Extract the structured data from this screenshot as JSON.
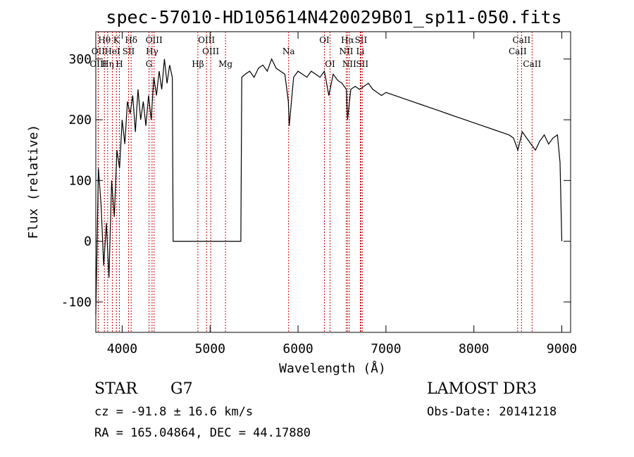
{
  "chart_data": {
    "type": "line",
    "title": "spec-57010-HD105614N420029B01_sp11-050.fits",
    "xlabel": "Wavelength (Å)",
    "ylabel": "Flux (relative)",
    "xlim": [
      3700,
      9100
    ],
    "ylim": [
      -150,
      345
    ],
    "xticks": [
      4000,
      5000,
      6000,
      7000,
      8000,
      9000
    ],
    "yticks": [
      -100,
      0,
      100,
      200,
      300
    ],
    "grid": false,
    "line_color": "#000000",
    "marker_color": "#cc0000",
    "series": [
      {
        "x": [
          3700,
          3730,
          3760,
          3790,
          3820,
          3850,
          3880,
          3910,
          3940,
          3970,
          4000,
          4030,
          4060,
          4090,
          4120,
          4150,
          4180,
          4210,
          4240,
          4270,
          4300,
          4330,
          4360,
          4390,
          4420,
          4450,
          4480,
          4510,
          4540,
          4570,
          4580,
          4620,
          4700,
          4800,
          4900,
          5000,
          5100,
          5200,
          5300,
          5350,
          5360,
          5400,
          5450,
          5500,
          5550,
          5600,
          5650,
          5700,
          5750,
          5800,
          5850,
          5890,
          5900,
          5950,
          6000,
          6050,
          6100,
          6150,
          6200,
          6250,
          6300,
          6350,
          6400,
          6450,
          6500,
          6550,
          6563,
          6600,
          6650,
          6700,
          6750,
          6800,
          6850,
          6900,
          6950,
          7000,
          7100,
          7200,
          7300,
          7400,
          7500,
          7600,
          7700,
          7800,
          7900,
          8000,
          8100,
          8200,
          8300,
          8400,
          8450,
          8500,
          8550,
          8600,
          8650,
          8700,
          8750,
          8800,
          8850,
          8900,
          8950,
          8980,
          9000
        ],
        "y": [
          -120,
          120,
          60,
          -40,
          30,
          -60,
          100,
          40,
          150,
          120,
          200,
          160,
          230,
          210,
          240,
          180,
          250,
          200,
          230,
          190,
          240,
          200,
          270,
          240,
          280,
          250,
          300,
          260,
          290,
          270,
          0,
          0,
          0,
          0,
          0,
          0,
          0,
          0,
          0,
          0,
          270,
          275,
          280,
          270,
          285,
          290,
          280,
          300,
          285,
          280,
          275,
          230,
          190,
          270,
          280,
          275,
          270,
          280,
          275,
          270,
          280,
          240,
          275,
          265,
          260,
          250,
          200,
          250,
          255,
          250,
          255,
          260,
          250,
          245,
          240,
          245,
          240,
          235,
          230,
          225,
          220,
          215,
          210,
          205,
          200,
          195,
          190,
          185,
          180,
          175,
          170,
          150,
          180,
          170,
          160,
          150,
          165,
          175,
          160,
          170,
          175,
          130,
          0
        ]
      }
    ],
    "spectral_lines": [
      {
        "label": "Hθ",
        "x": 3798,
        "row": 1
      },
      {
        "label": "K",
        "x": 3934,
        "row": 1
      },
      {
        "label": "Hδ",
        "x": 4102,
        "row": 1
      },
      {
        "label": "OIII",
        "x": 4363,
        "row": 1
      },
      {
        "label": "OIII",
        "x": 4959,
        "row": 1
      },
      {
        "label": "Na",
        "x": 5893,
        "row": 2
      },
      {
        "label": "OI",
        "x": 6300,
        "row": 1
      },
      {
        "label": "Hα",
        "x": 6563,
        "row": 1
      },
      {
        "label": "SII",
        "x": 6716,
        "row": 1
      },
      {
        "label": "CaII",
        "x": 8542,
        "row": 1
      },
      {
        "label": "OII",
        "x": 3727,
        "row": 2
      },
      {
        "label": "HeI",
        "x": 3889,
        "row": 2
      },
      {
        "label": "SII",
        "x": 4072,
        "row": 2
      },
      {
        "label": "Hγ",
        "x": 4340,
        "row": 2
      },
      {
        "label": "OIII",
        "x": 5007,
        "row": 2
      },
      {
        "label": "NII",
        "x": 6548,
        "row": 2
      },
      {
        "label": "Li",
        "x": 6708,
        "row": 2
      },
      {
        "label": "CaII",
        "x": 8498,
        "row": 2
      },
      {
        "label": "OIII",
        "x": 3727,
        "row": 3
      },
      {
        "label": "Hη",
        "x": 3835,
        "row": 3
      },
      {
        "label": "H",
        "x": 3968,
        "row": 3
      },
      {
        "label": "G",
        "x": 4305,
        "row": 3
      },
      {
        "label": "Hβ",
        "x": 4861,
        "row": 3
      },
      {
        "label": "Mg",
        "x": 5175,
        "row": 3
      },
      {
        "label": "OI",
        "x": 6364,
        "row": 3
      },
      {
        "label": "NII",
        "x": 6583,
        "row": 3
      },
      {
        "label": "SII",
        "x": 6731,
        "row": 3
      },
      {
        "label": "CaII",
        "x": 8662,
        "row": 3
      }
    ]
  },
  "footer": {
    "object_type": "STAR",
    "subclass": "G7",
    "survey": "LAMOST DR3",
    "redshift": "cz = -91.8 ± 16.6 km/s",
    "obs_date": "Obs-Date: 20141218",
    "coords": "RA = 165.04864, DEC =  44.17880"
  }
}
